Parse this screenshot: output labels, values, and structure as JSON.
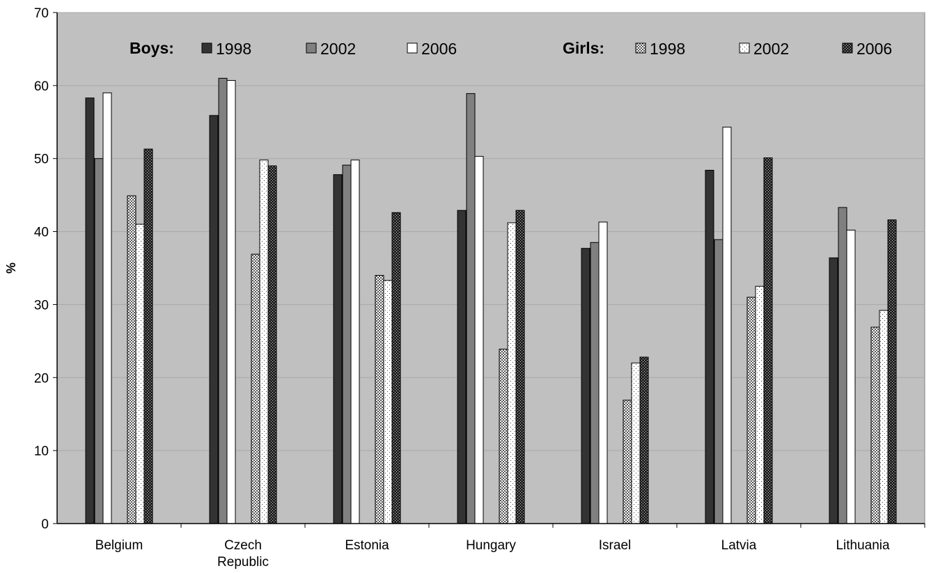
{
  "chart_data": {
    "type": "bar",
    "title": "",
    "xlabel": "",
    "ylabel": "%",
    "ylim": [
      0,
      70
    ],
    "yticks": [
      0,
      10,
      20,
      30,
      40,
      50,
      60,
      70
    ],
    "grid": true,
    "legend_position": "top",
    "legend_groups": [
      {
        "label": "Boys:",
        "series": [
          0,
          1,
          2
        ]
      },
      {
        "label": "Girls:",
        "series": [
          3,
          4,
          5
        ]
      }
    ],
    "categories": [
      [
        "Belgium"
      ],
      [
        "Czech",
        "Republic"
      ],
      [
        "Estonia"
      ],
      [
        "Hungary"
      ],
      [
        "Israel"
      ],
      [
        "Latvia"
      ],
      [
        "Lithuania"
      ]
    ],
    "series": [
      {
        "name": "1998",
        "group": "Boys",
        "color": "#333333",
        "values": [
          58.3,
          55.9,
          47.8,
          42.9,
          37.7,
          48.4,
          36.4
        ]
      },
      {
        "name": "2002",
        "group": "Boys",
        "color": "#808080",
        "values": [
          50.0,
          61.0,
          49.1,
          58.9,
          38.5,
          38.9,
          43.3
        ]
      },
      {
        "name": "2006",
        "group": "Boys",
        "color": "#ffffff",
        "values": [
          59.0,
          60.7,
          49.8,
          50.3,
          41.3,
          54.3,
          40.2
        ]
      },
      {
        "name": "1998",
        "group": "Girls",
        "color": "#cccccc",
        "values": [
          44.9,
          36.9,
          34.0,
          23.9,
          16.9,
          31.0,
          26.9
        ]
      },
      {
        "name": "2002",
        "group": "Girls",
        "color": "#ffffff",
        "values": [
          41.0,
          49.8,
          33.3,
          41.2,
          22.0,
          32.5,
          29.2
        ]
      },
      {
        "name": "2006",
        "group": "Girls",
        "color": "#222222",
        "values": [
          51.3,
          49.0,
          42.6,
          42.9,
          22.8,
          50.1,
          41.6
        ]
      }
    ],
    "colors": {
      "plot_background": "#c0c0c0",
      "gridline": "#a8a8a8",
      "axis": "#000000"
    }
  }
}
